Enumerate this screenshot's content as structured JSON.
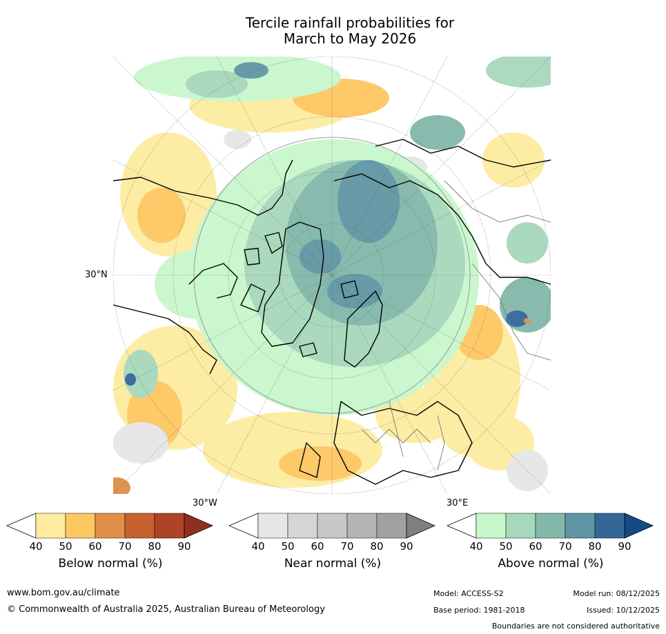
{
  "title": {
    "line1": "Tercile rainfall probabilities for",
    "line2": "March to May 2026"
  },
  "map": {
    "lat_label": "30°N",
    "lon_left_label": "30°W",
    "lon_right_label": "30°E"
  },
  "colorbars": [
    {
      "id": "below",
      "label": "Below normal (%)",
      "ticks": [
        "40",
        "50",
        "60",
        "70",
        "80",
        "90"
      ],
      "colors": [
        "#fdec9f",
        "#fdc762",
        "#df8f48",
        "#c8602f",
        "#ae4426",
        "#913020"
      ]
    },
    {
      "id": "near",
      "label": "Near normal (%)",
      "ticks": [
        "40",
        "50",
        "60",
        "70",
        "80",
        "90"
      ],
      "colors": [
        "#e6e6e6",
        "#d5d5d5",
        "#c8c8c8",
        "#b5b5b5",
        "#a1a1a1",
        "#7f7f7f"
      ]
    },
    {
      "id": "above",
      "label": "Above normal (%)",
      "ticks": [
        "40",
        "50",
        "60",
        "70",
        "80",
        "90"
      ],
      "colors": [
        "#c8f7cb",
        "#a6d8bb",
        "#82b8aa",
        "#5e96a3",
        "#336798",
        "#144b86"
      ]
    }
  ],
  "footer": {
    "website": "www.bom.gov.au/climate",
    "copyright": "© Commonwealth of Australia 2025, Australian Bureau of Meteorology",
    "model": "Model: ACCESS-S2",
    "base_period": "Base period: 1981-2018",
    "model_run": "Model run: 08/12/2025",
    "issued": "Issued: 10/12/2025",
    "disclaimer": "Boundaries are not considered authoritative"
  }
}
